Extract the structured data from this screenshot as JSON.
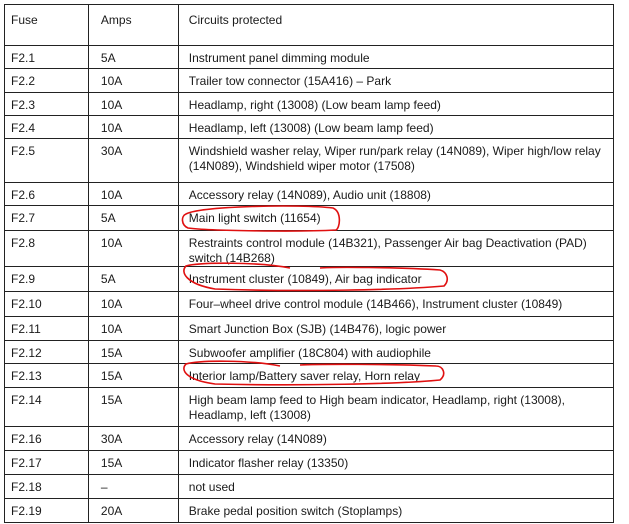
{
  "headers": {
    "fuse": "Fuse",
    "amps": "Amps",
    "circuits": "Circuits protected"
  },
  "rows": [
    {
      "fuse": "F2.1",
      "amps": "5A",
      "circuits": "Instrument panel dimming module"
    },
    {
      "fuse": "F2.2",
      "amps": "10A",
      "circuits": "Trailer tow connector (15A416) – Park"
    },
    {
      "fuse": "F2.3",
      "amps": "10A",
      "circuits": "Headlamp, right (13008) (Low beam lamp feed)"
    },
    {
      "fuse": "F2.4",
      "amps": "10A",
      "circuits": "Headlamp, left (13008) (Low beam lamp feed)"
    },
    {
      "fuse": "F2.5",
      "amps": "30A",
      "circuits": "Windshield washer relay, Wiper run/park relay (14N089), Wiper high/low relay (14N089), Windshield wiper motor (17508)"
    },
    {
      "fuse": "F2.6",
      "amps": "10A",
      "circuits": "Accessory relay (14N089), Audio unit (18808)"
    },
    {
      "fuse": "F2.7",
      "amps": "5A",
      "circuits": "Main light switch (11654)",
      "circled": true
    },
    {
      "fuse": "F2.8",
      "amps": "10A",
      "circuits": "Restraints control module (14B321), Passenger Air bag Deactivation (PAD) switch (14B268)"
    },
    {
      "fuse": "F2.9",
      "amps": "5A",
      "circuits": "Instrument cluster (10849), Air bag indicator",
      "circled": true
    },
    {
      "fuse": "F2.10",
      "amps": "10A",
      "circuits": "Four–wheel drive control module (14B466), Instrument cluster (10849)"
    },
    {
      "fuse": "F2.11",
      "amps": "10A",
      "circuits": "Smart Junction Box (SJB) (14B476), logic power"
    },
    {
      "fuse": "F2.12",
      "amps": "15A",
      "circuits": "Subwoofer amplifier (18C804) with audiophile"
    },
    {
      "fuse": "F2.13",
      "amps": "15A",
      "circuits": "Interior lamp/Battery saver relay, Horn relay",
      "circled": true
    },
    {
      "fuse": "F2.14",
      "amps": "15A",
      "circuits": "High beam lamp feed to High beam indicator, Headlamp, right (13008), Headlamp, left (13008)"
    },
    {
      "fuse": "F2.16",
      "amps": "30A",
      "circuits": "Accessory relay (14N089)"
    },
    {
      "fuse": "F2.17",
      "amps": "15A",
      "circuits": "Indicator flasher relay (13350)"
    },
    {
      "fuse": "F2.18",
      "amps": "–",
      "circuits": "not used"
    },
    {
      "fuse": "F2.19",
      "amps": "20A",
      "circuits": "Brake pedal position switch (Stoplamps)"
    }
  ],
  "colors": {
    "annotation": "#e01010",
    "border": "#222222"
  }
}
